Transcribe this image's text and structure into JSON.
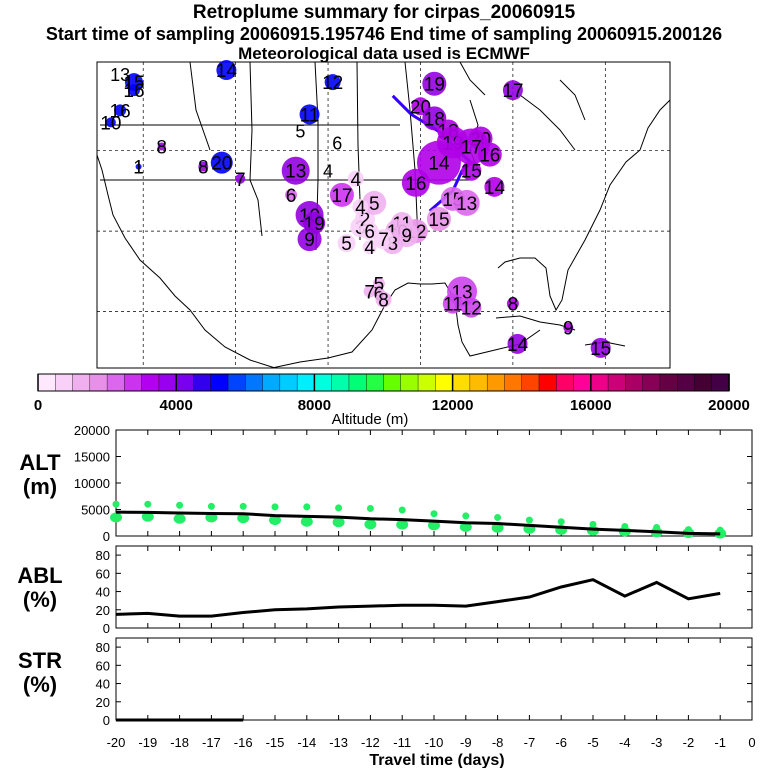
{
  "header": {
    "title": "Retroplume summary for cirpas_20060915",
    "sampling": "Start time of sampling 20060915.195746     End time of sampling 20060915.200126",
    "met": "Meteorological data used is ECMWF"
  },
  "colorbar": {
    "label": "Altitude (m)",
    "ticks": [
      "0",
      "4000",
      "8000",
      "12000",
      "16000",
      "20000"
    ],
    "colors": [
      "#fde8fd",
      "#f8d0f8",
      "#f0b0f0",
      "#e890e8",
      "#dd66ee",
      "#cc33ee",
      "#b400f0",
      "#9a00f0",
      "#7a00f0",
      "#3300ee",
      "#0000ff",
      "#0044ff",
      "#0077ff",
      "#00aaff",
      "#00ccff",
      "#00eeff",
      "#00ffdd",
      "#00ffaa",
      "#00ff77",
      "#22ff44",
      "#66ff00",
      "#99ff00",
      "#ccff00",
      "#ffff00",
      "#ffdd00",
      "#ffbb00",
      "#ff9900",
      "#ff7700",
      "#ff4400",
      "#ff0000",
      "#ff0066",
      "#ff0099",
      "#ee0088",
      "#cc0077",
      "#aa0066",
      "#880055",
      "#660044",
      "#550044",
      "#440033",
      "#440044"
    ]
  },
  "chart_data": [
    {
      "type": "map",
      "title": "Retroplume summary for cirpas_20060915",
      "description_labels": "Numbered plume centroid positions (days before sampling) over North America",
      "clusters": [
        {
          "label": "19",
          "lon": -88.5,
          "lat": 48.3,
          "size": 12,
          "color": "#9400e0"
        },
        {
          "label": "17",
          "lon": -80.0,
          "lat": 47.5,
          "size": 10,
          "color": "#9400e0"
        },
        {
          "label": "20",
          "lon": -90.0,
          "lat": 45.5,
          "size": 9,
          "color": "#b000e8"
        },
        {
          "label": "18",
          "lon": -88.5,
          "lat": 44.0,
          "size": 12,
          "color": "#9400e0"
        },
        {
          "label": "18",
          "lon": -87.0,
          "lat": 42.5,
          "size": 11,
          "color": "#b000e8"
        },
        {
          "label": "20",
          "lon": -83.5,
          "lat": 41.5,
          "size": 12,
          "color": "#b000e8"
        },
        {
          "label": "19",
          "lon": -86.5,
          "lat": 41.0,
          "size": 16,
          "color": "#b000e8"
        },
        {
          "label": "17",
          "lon": -84.5,
          "lat": 40.5,
          "size": 18,
          "color": "#b000e8"
        },
        {
          "label": "16",
          "lon": -82.5,
          "lat": 39.5,
          "size": 12,
          "color": "#b000e8"
        },
        {
          "label": "14",
          "lon": -88.0,
          "lat": 38.5,
          "size": 22,
          "color": "#b000e8"
        },
        {
          "label": "15",
          "lon": -84.5,
          "lat": 37.5,
          "size": 10,
          "color": "#b000e8"
        },
        {
          "label": "14",
          "lon": -82.0,
          "lat": 35.5,
          "size": 10,
          "color": "#b000e8"
        },
        {
          "label": "16",
          "lon": -90.5,
          "lat": 36.0,
          "size": 14,
          "color": "#b000e8"
        },
        {
          "label": "15",
          "lon": -86.5,
          "lat": 34.0,
          "size": 12,
          "color": "#dd66ee"
        },
        {
          "label": "13",
          "lon": -85.0,
          "lat": 33.5,
          "size": 13,
          "color": "#dd66ee"
        },
        {
          "label": "15",
          "lon": -88.0,
          "lat": 31.5,
          "size": 12,
          "color": "#e890e8"
        },
        {
          "label": "12",
          "lon": -90.5,
          "lat": 30.0,
          "size": 12,
          "color": "#e890e8"
        },
        {
          "label": "11",
          "lon": -92.0,
          "lat": 31.0,
          "size": 11,
          "color": "#f0b0f0"
        },
        {
          "label": "10",
          "lon": -92.5,
          "lat": 30.0,
          "size": 12,
          "color": "#f0b0f0"
        },
        {
          "label": "9",
          "lon": -91.5,
          "lat": 29.5,
          "size": 12,
          "color": "#f0b0f0"
        },
        {
          "label": "8",
          "lon": -93.0,
          "lat": 28.5,
          "size": 11,
          "color": "#f0b0f0"
        },
        {
          "label": "7",
          "lon": -94.0,
          "lat": 29.0,
          "size": 10,
          "color": "#f8d0f8"
        },
        {
          "label": "3",
          "lon": -96.5,
          "lat": 30.5,
          "size": 10,
          "color": "#f8d0f8"
        },
        {
          "label": "2",
          "lon": -96.0,
          "lat": 31.5,
          "size": 10,
          "color": "#f8d0f8"
        },
        {
          "label": "6",
          "lon": -95.5,
          "lat": 30.0,
          "size": 9,
          "color": "#f8d0f8"
        },
        {
          "label": "5",
          "lon": -98.0,
          "lat": 28.5,
          "size": 9,
          "color": "#f8d0f8"
        },
        {
          "label": "4",
          "lon": -95.5,
          "lat": 28.0,
          "size": 7,
          "color": "#f8d0f8"
        },
        {
          "label": "4",
          "lon": -97.0,
          "lat": 36.5,
          "size": 8,
          "color": "#f8d0f8"
        },
        {
          "label": "5",
          "lon": -95.0,
          "lat": 33.5,
          "size": 12,
          "color": "#f0b0f0"
        },
        {
          "label": "4",
          "lon": -96.5,
          "lat": 33.0,
          "size": 8,
          "color": "#f8d0f8"
        },
        {
          "label": "17",
          "lon": -98.5,
          "lat": 34.5,
          "size": 12,
          "color": "#cc33ee"
        },
        {
          "label": "10",
          "lon": -102.0,
          "lat": 32.0,
          "size": 14,
          "color": "#9400e0"
        },
        {
          "label": "19",
          "lon": -101.5,
          "lat": 31.0,
          "size": 11,
          "color": "#9400e0"
        },
        {
          "label": "9",
          "lon": -102.0,
          "lat": 29.0,
          "size": 12,
          "color": "#9400e0"
        },
        {
          "label": "13",
          "lon": -103.5,
          "lat": 37.5,
          "size": 14,
          "color": "#9400e0"
        },
        {
          "label": "6",
          "lon": -104.0,
          "lat": 34.5,
          "size": 6,
          "color": "#dd66ee"
        },
        {
          "label": "5",
          "lon": -94.5,
          "lat": 23.5,
          "size": 6,
          "color": "#f0b0f0"
        },
        {
          "label": "7",
          "lon": -95.5,
          "lat": 22.5,
          "size": 6,
          "color": "#f0b0f0"
        },
        {
          "label": "6",
          "lon": -94.5,
          "lat": 22.3,
          "size": 6,
          "color": "#f0b0f0"
        },
        {
          "label": "8",
          "lon": -94.0,
          "lat": 21.5,
          "size": 8,
          "color": "#f0b0f0"
        },
        {
          "label": "13",
          "lon": -85.5,
          "lat": 22.5,
          "size": 15,
          "color": "#cc44ee"
        },
        {
          "label": "11",
          "lon": -86.5,
          "lat": 21.0,
          "size": 10,
          "color": "#cc44ee"
        },
        {
          "label": "12",
          "lon": -84.5,
          "lat": 20.5,
          "size": 10,
          "color": "#cc44ee"
        },
        {
          "label": "8",
          "lon": -80.0,
          "lat": 21.0,
          "size": 6,
          "color": "#b000e8"
        },
        {
          "label": "9",
          "lon": -74.0,
          "lat": 18.0,
          "size": 5,
          "color": "#b000e8"
        },
        {
          "label": "14",
          "lon": -79.5,
          "lat": 16.0,
          "size": 10,
          "color": "#9400e0"
        },
        {
          "label": "15",
          "lon": -70.5,
          "lat": 15.5,
          "size": 10,
          "color": "#9400e0"
        },
        {
          "label": "14",
          "lon": -111.0,
          "lat": 50.0,
          "size": 10,
          "color": "#0000ff"
        },
        {
          "label": "15",
          "lon": -121.0,
          "lat": 48.5,
          "size": 9,
          "color": "#0000ff"
        },
        {
          "label": "16",
          "lon": -121.0,
          "lat": 47.5,
          "size": 6,
          "color": "#0000ff"
        },
        {
          "label": "16",
          "lon": -122.5,
          "lat": 45.0,
          "size": 6,
          "color": "#0000ff"
        },
        {
          "label": "10",
          "lon": -123.5,
          "lat": 43.5,
          "size": 5,
          "color": "#0000ff"
        },
        {
          "label": "12",
          "lon": -99.5,
          "lat": 48.5,
          "size": 8,
          "color": "#0000ff"
        },
        {
          "label": "11",
          "lon": -102.0,
          "lat": 44.5,
          "size": 10,
          "color": "#0000ff"
        },
        {
          "label": "20",
          "lon": -111.5,
          "lat": 38.5,
          "size": 11,
          "color": "#0000ff"
        },
        {
          "label": "8",
          "lon": -113.5,
          "lat": 38.0,
          "size": 5,
          "color": "#9400e0"
        },
        {
          "label": "7",
          "lon": -109.5,
          "lat": 36.5,
          "size": 5,
          "color": "#9400e0"
        },
        {
          "label": "8",
          "lon": -118.0,
          "lat": 40.5,
          "size": 4,
          "color": "#9400e0"
        },
        {
          "label": "1",
          "lon": -120.5,
          "lat": 38.0,
          "size": 3,
          "color": "#0000ff"
        }
      ],
      "text_only": [
        {
          "label": "13",
          "lon": -122.5,
          "lat": 49.5
        },
        {
          "label": "5",
          "lon": -103.0,
          "lat": 42.5
        },
        {
          "label": "6",
          "lon": -99.0,
          "lat": 41.0
        },
        {
          "label": "4",
          "lon": -100.0,
          "lat": 37.5
        }
      ],
      "path": [
        [
          -93.0,
          46.8
        ],
        [
          -91.0,
          44.5
        ],
        [
          -87.5,
          42.0
        ],
        [
          -86.0,
          40.0
        ],
        [
          -84.5,
          38.5
        ],
        [
          -85.5,
          37.5
        ],
        [
          -86.5,
          35.0
        ],
        [
          -89.0,
          32.5
        ]
      ]
    },
    {
      "type": "line",
      "name": "ALT",
      "ylabel": "ALT (m)",
      "ylim": [
        0,
        20000
      ],
      "yticks": [
        0,
        5000,
        10000,
        15000,
        20000
      ],
      "x": [
        -20,
        -19,
        -18,
        -17,
        -16,
        -15,
        -14,
        -13,
        -12,
        -11,
        -10,
        -9,
        -8,
        -7,
        -6,
        -5,
        -4,
        -3,
        -2,
        -1
      ],
      "values": [
        4500,
        4450,
        4350,
        4250,
        4200,
        3850,
        3700,
        3550,
        3250,
        3100,
        2800,
        2500,
        2350,
        2000,
        1650,
        1300,
        1050,
        800,
        500,
        400
      ],
      "scatter_mid": [
        3500,
        3650,
        3250,
        3500,
        3350,
        3000,
        2700,
        2600,
        2200,
        2150,
        2000,
        1700,
        1550,
        1350,
        1150,
        1000,
        850,
        700,
        550,
        450
      ],
      "scatter_top": [
        6000,
        6000,
        5800,
        5600,
        5600,
        5500,
        5500,
        5300,
        5200,
        4900,
        4200,
        3800,
        3500,
        3000,
        2700,
        2200,
        1800,
        1600,
        1200,
        1100
      ]
    },
    {
      "type": "line",
      "name": "ABL",
      "ylabel": "ABL (%)",
      "ylim": [
        0,
        90
      ],
      "yticks": [
        0,
        20,
        40,
        60,
        80
      ],
      "x": [
        -20,
        -19,
        -18,
        -17,
        -16,
        -15,
        -14,
        -13,
        -12,
        -11,
        -10,
        -9,
        -8,
        -7,
        -6,
        -5,
        -4,
        -3,
        -2,
        -1
      ],
      "values": [
        15,
        16,
        13,
        13,
        17,
        20,
        21,
        23,
        24,
        25,
        25,
        24,
        29,
        34,
        45,
        53,
        35,
        50,
        32,
        38
      ]
    },
    {
      "type": "line",
      "name": "STR",
      "ylabel": "STR (%)",
      "ylim": [
        0,
        90
      ],
      "yticks": [
        0,
        20,
        40,
        60,
        80
      ],
      "x": [
        -20,
        -19,
        -18,
        -17,
        -16
      ],
      "values": [
        0,
        0,
        0,
        0,
        0
      ]
    }
  ],
  "axes": {
    "xlabel": "Travel time (days)",
    "xticks": [
      "-20",
      "-19",
      "-18",
      "-17",
      "-16",
      "-15",
      "-14",
      "-13",
      "-12",
      "-11",
      "-10",
      "-9",
      "-8",
      "-7",
      "-6",
      "-5",
      "-4",
      "-3",
      "-2",
      "-1",
      "0"
    ],
    "panel_labels": {
      "alt_1": "ALT",
      "alt_2": "(m)",
      "abl_1": "ABL",
      "abl_2": "(%)",
      "str_1": "STR",
      "str_2": "(%)"
    }
  }
}
